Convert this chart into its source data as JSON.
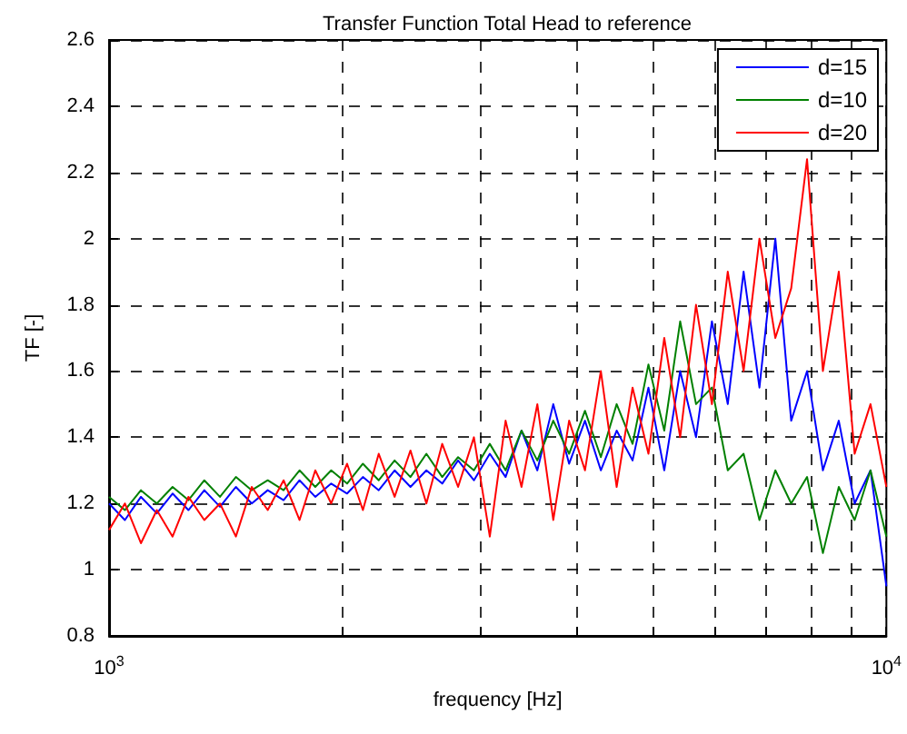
{
  "chart_data": {
    "type": "line",
    "title": "Transfer Function Total Head to reference",
    "xlabel": "frequency [Hz]",
    "ylabel": "TF [-]",
    "x": [
      1000,
      1048,
      1099,
      1152,
      1207,
      1265,
      1326,
      1389,
      1456,
      1526,
      1600,
      1677,
      1758,
      1842,
      1931,
      2024,
      2121,
      2223,
      2330,
      2442,
      2560,
      2683,
      2812,
      2947,
      3089,
      3237,
      3393,
      3556,
      3728,
      3907,
      4095,
      4292,
      4498,
      4715,
      4942,
      5179,
      5429,
      5690,
      5964,
      6251,
      6551,
      6866,
      7197,
      7543,
      7906,
      8286,
      8685,
      9103,
      9541,
      10000
    ],
    "series": [
      {
        "name": "d=15",
        "color": "#0000ff",
        "values": [
          1.2,
          1.15,
          1.22,
          1.17,
          1.23,
          1.18,
          1.24,
          1.19,
          1.25,
          1.2,
          1.24,
          1.21,
          1.27,
          1.22,
          1.26,
          1.23,
          1.28,
          1.24,
          1.3,
          1.25,
          1.3,
          1.26,
          1.33,
          1.27,
          1.35,
          1.28,
          1.42,
          1.3,
          1.5,
          1.32,
          1.45,
          1.3,
          1.42,
          1.33,
          1.55,
          1.3,
          1.6,
          1.4,
          1.75,
          1.5,
          1.9,
          1.55,
          2.0,
          1.45,
          1.6,
          1.3,
          1.45,
          1.2,
          1.3,
          0.95
        ]
      },
      {
        "name": "d=10",
        "color": "#008000",
        "values": [
          1.22,
          1.18,
          1.24,
          1.2,
          1.25,
          1.21,
          1.27,
          1.22,
          1.28,
          1.24,
          1.27,
          1.24,
          1.3,
          1.25,
          1.3,
          1.26,
          1.32,
          1.27,
          1.33,
          1.28,
          1.35,
          1.28,
          1.34,
          1.3,
          1.38,
          1.3,
          1.42,
          1.33,
          1.45,
          1.35,
          1.48,
          1.34,
          1.5,
          1.38,
          1.62,
          1.42,
          1.75,
          1.5,
          1.55,
          1.3,
          1.35,
          1.15,
          1.3,
          1.2,
          1.28,
          1.05,
          1.25,
          1.15,
          1.3,
          1.1
        ]
      },
      {
        "name": "d=20",
        "color": "#ff0000",
        "values": [
          1.12,
          1.2,
          1.08,
          1.18,
          1.1,
          1.22,
          1.15,
          1.2,
          1.1,
          1.25,
          1.18,
          1.27,
          1.15,
          1.3,
          1.2,
          1.32,
          1.18,
          1.35,
          1.22,
          1.36,
          1.2,
          1.38,
          1.25,
          1.4,
          1.1,
          1.45,
          1.25,
          1.5,
          1.15,
          1.45,
          1.3,
          1.6,
          1.25,
          1.55,
          1.35,
          1.7,
          1.4,
          1.8,
          1.5,
          1.9,
          1.6,
          2.0,
          1.7,
          1.85,
          2.24,
          1.6,
          1.9,
          1.35,
          1.5,
          1.25
        ]
      }
    ],
    "xlim": [
      1000,
      10000
    ],
    "xticks": [
      {
        "value": 1000,
        "label": "10$^{3}$"
      },
      {
        "value": 2000,
        "label": null
      },
      {
        "value": 3000,
        "label": null
      },
      {
        "value": 4000,
        "label": null
      },
      {
        "value": 5000,
        "label": null
      },
      {
        "value": 6000,
        "label": null
      },
      {
        "value": 7000,
        "label": null
      },
      {
        "value": 8000,
        "label": null
      },
      {
        "value": 9000,
        "label": null
      },
      {
        "value": 10000,
        "label": "10$^{4}$"
      }
    ],
    "ylim": [
      0.8,
      2.6
    ],
    "yticks": [
      0.8,
      1,
      1.2,
      1.4,
      1.6,
      1.8,
      2,
      2.2,
      2.4,
      2.6
    ],
    "log": "x",
    "grid": true,
    "legend": "top right",
    "line_style": "solid"
  }
}
